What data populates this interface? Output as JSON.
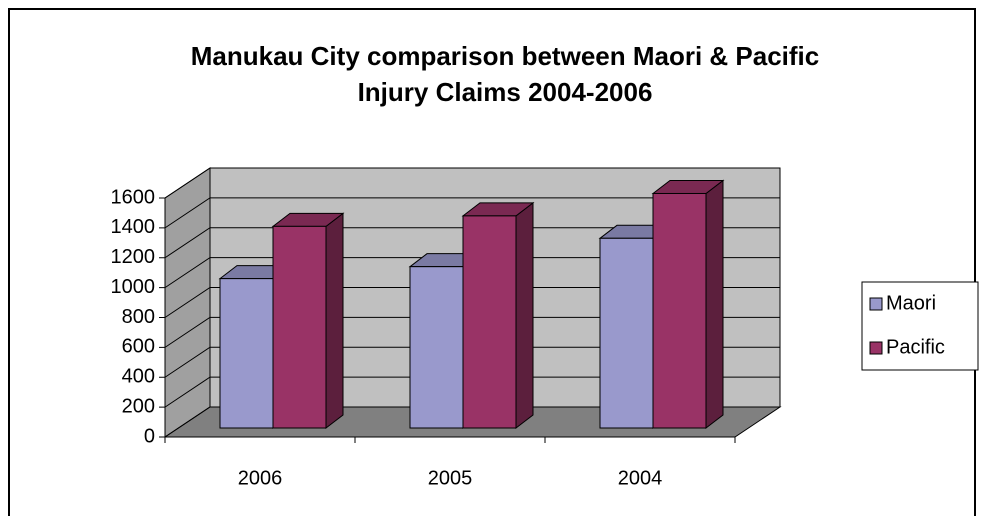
{
  "chart_data": {
    "type": "bar3d",
    "title": "Manukau City comparison between Maori & Pacific Injury Claims 2004-2006",
    "categories": [
      "2006",
      "2005",
      "2004"
    ],
    "series": [
      {
        "name": "Maori",
        "color": "#9999cc",
        "values": [
          1000,
          1080,
          1270
        ]
      },
      {
        "name": "Pacific",
        "color": "#993366",
        "values": [
          1350,
          1420,
          1570
        ]
      }
    ],
    "ylim": [
      0,
      1600
    ],
    "yticks": [
      0,
      200,
      400,
      600,
      800,
      1000,
      1200,
      1400,
      1600
    ],
    "grid": true,
    "legend": "right"
  }
}
